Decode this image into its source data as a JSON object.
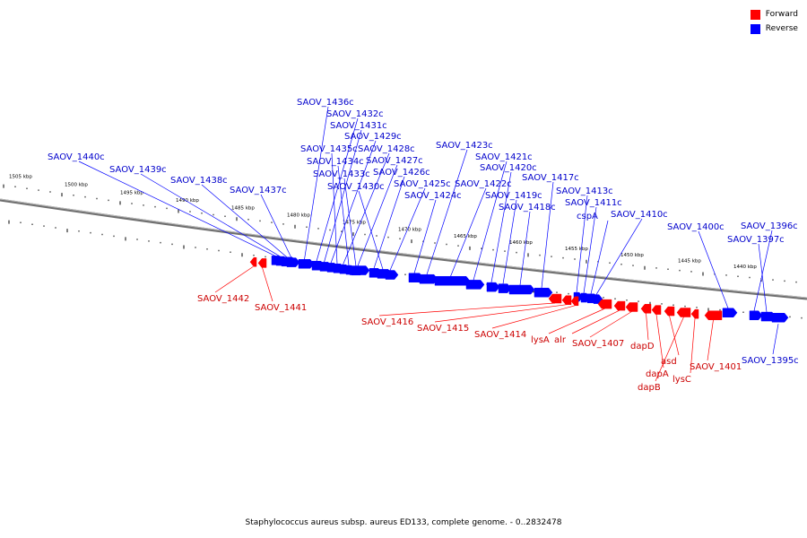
{
  "legend": {
    "forward_label": "Forward",
    "reverse_label": "Reverse",
    "forward_color": "#ff0000",
    "reverse_color": "#0000ff"
  },
  "caption": "Staphylococcus aureus subsp. aureus ED133, complete genome. - 0..2832478",
  "scale": {
    "upper_ticks": [
      "1505 kbp",
      "1500 kbp",
      "1495 kbp",
      "1490 kbp",
      "1485 kbp",
      "1480 kbp",
      "1475 kbp",
      "1470 kbp",
      "1465 kbp",
      "1460 kbp",
      "1455 kbp",
      "1450 kbp",
      "1445 kbp",
      "1440 kbp"
    ]
  },
  "genes": {
    "reverse": [
      {
        "label": "SAOV_1440c"
      },
      {
        "label": "SAOV_1439c"
      },
      {
        "label": "SAOV_1438c"
      },
      {
        "label": "SAOV_1437c"
      },
      {
        "label": "SAOV_1436c"
      },
      {
        "label": "SAOV_1432c"
      },
      {
        "label": "SAOV_1431c"
      },
      {
        "label": "SAOV_1429c"
      },
      {
        "label": "SAOV_1435c"
      },
      {
        "label": "SAOV_1428c"
      },
      {
        "label": "SAOV_1434c"
      },
      {
        "label": "SAOV_1427c"
      },
      {
        "label": "SAOV_1433c"
      },
      {
        "label": "SAOV_1426c"
      },
      {
        "label": "SAOV_1430c"
      },
      {
        "label": "SAOV_1425c"
      },
      {
        "label": "SAOV_1424c"
      },
      {
        "label": "SAOV_1423c"
      },
      {
        "label": "SAOV_1422c"
      },
      {
        "label": "SAOV_1421c"
      },
      {
        "label": "SAOV_1420c"
      },
      {
        "label": "SAOV_1419c"
      },
      {
        "label": "SAOV_1418c"
      },
      {
        "label": "SAOV_1417c"
      },
      {
        "label": "SAOV_1413c"
      },
      {
        "label": "SAOV_1411c"
      },
      {
        "label": "cspA"
      },
      {
        "label": "SAOV_1410c"
      },
      {
        "label": "SAOV_1400c"
      },
      {
        "label": "SAOV_1396c"
      },
      {
        "label": "SAOV_1397c"
      },
      {
        "label": "SAOV_1395c"
      }
    ],
    "forward": [
      {
        "label": "SAOV_1442"
      },
      {
        "label": "SAOV_1441"
      },
      {
        "label": "SAOV_1416"
      },
      {
        "label": "SAOV_1415"
      },
      {
        "label": "SAOV_1414"
      },
      {
        "label": "lysA"
      },
      {
        "label": "alr"
      },
      {
        "label": "SAOV_1407"
      },
      {
        "label": "dapD"
      },
      {
        "label": "dapA"
      },
      {
        "label": "asd"
      },
      {
        "label": "dapB"
      },
      {
        "label": "lysC"
      },
      {
        "label": "SAOV_1401"
      }
    ]
  }
}
